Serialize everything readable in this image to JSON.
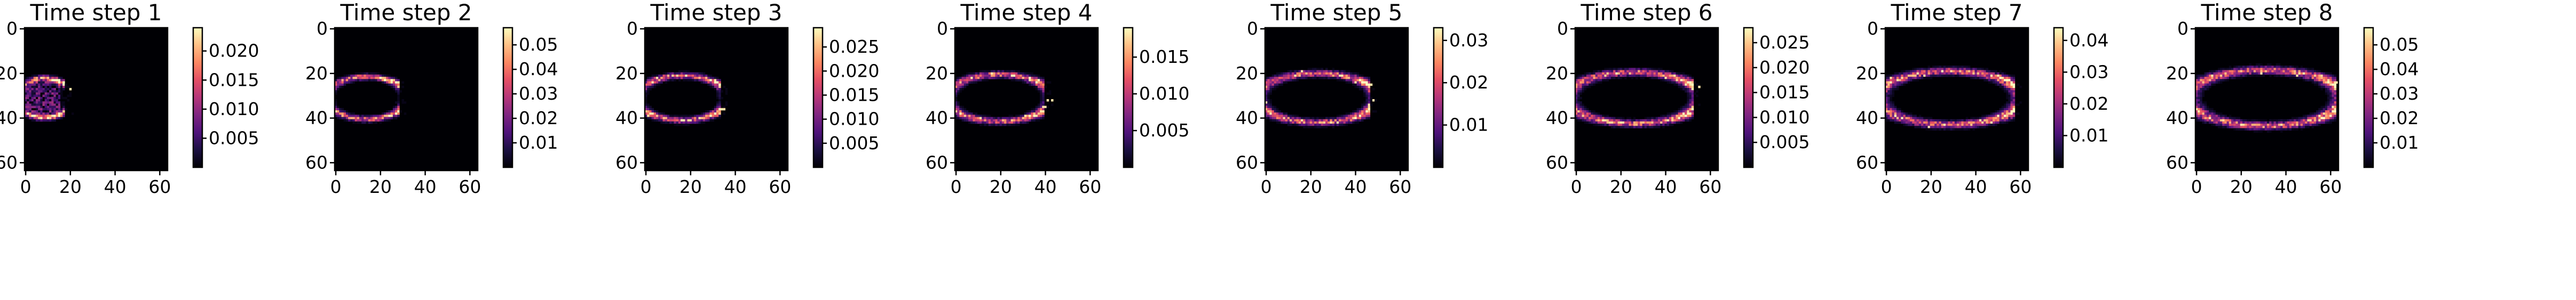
{
  "figure": {
    "background": "#ffffff",
    "colormap": "magma"
  },
  "chart_data": [
    {
      "type": "heatmap",
      "title": "Time step 1",
      "grid_size": 64,
      "xticks": [
        "0",
        "20",
        "40",
        "60"
      ],
      "yticks": [
        "0",
        "20",
        "40",
        "60"
      ],
      "xlim": [
        0,
        63
      ],
      "ylim": [
        63,
        0
      ],
      "colorbar": {
        "min": 0.0,
        "max": 0.024,
        "ticks": [
          0.005,
          0.01,
          0.015,
          0.02
        ],
        "tick_labels": [
          "0.005",
          "0.010",
          "0.015",
          "0.020"
        ]
      },
      "front_x": 15
    },
    {
      "type": "heatmap",
      "title": "Time step 2",
      "grid_size": 64,
      "xticks": [
        "0",
        "20",
        "40",
        "60"
      ],
      "yticks": [
        "0",
        "20",
        "40",
        "60"
      ],
      "xlim": [
        0,
        63
      ],
      "ylim": [
        63,
        0
      ],
      "colorbar": {
        "min": 0.0,
        "max": 0.057,
        "ticks": [
          0.01,
          0.02,
          0.03,
          0.04,
          0.05
        ],
        "tick_labels": [
          "0.01",
          "0.02",
          "0.03",
          "0.04",
          "0.05"
        ]
      },
      "front_x": 26
    },
    {
      "type": "heatmap",
      "title": "Time step 3",
      "grid_size": 64,
      "xticks": [
        "0",
        "20",
        "40",
        "60"
      ],
      "yticks": [
        "0",
        "20",
        "40",
        "60"
      ],
      "xlim": [
        0,
        63
      ],
      "ylim": [
        63,
        0
      ],
      "colorbar": {
        "min": 0.0,
        "max": 0.029,
        "ticks": [
          0.005,
          0.01,
          0.015,
          0.02,
          0.025
        ],
        "tick_labels": [
          "0.005",
          "0.010",
          "0.015",
          "0.020",
          "0.025"
        ]
      },
      "front_x": 31
    },
    {
      "type": "heatmap",
      "title": "Time step 4",
      "grid_size": 64,
      "xticks": [
        "0",
        "20",
        "40",
        "60"
      ],
      "yticks": [
        "0",
        "20",
        "40",
        "60"
      ],
      "xlim": [
        0,
        63
      ],
      "ylim": [
        63,
        0
      ],
      "colorbar": {
        "min": 0.0,
        "max": 0.019,
        "ticks": [
          0.005,
          0.01,
          0.015
        ],
        "tick_labels": [
          "0.005",
          "0.010",
          "0.015"
        ]
      },
      "front_x": 37
    },
    {
      "type": "heatmap",
      "title": "Time step 5",
      "grid_size": 64,
      "xticks": [
        "0",
        "20",
        "40",
        "60"
      ],
      "yticks": [
        "0",
        "20",
        "40",
        "60"
      ],
      "xlim": [
        0,
        63
      ],
      "ylim": [
        63,
        0
      ],
      "colorbar": {
        "min": 0.0,
        "max": 0.033,
        "ticks": [
          0.01,
          0.02,
          0.03
        ],
        "tick_labels": [
          "0.01",
          "0.02",
          "0.03"
        ]
      },
      "front_x": 44
    },
    {
      "type": "heatmap",
      "title": "Time step 6",
      "grid_size": 64,
      "xticks": [
        "0",
        "20",
        "40",
        "60"
      ],
      "yticks": [
        "0",
        "20",
        "40",
        "60"
      ],
      "xlim": [
        0,
        63
      ],
      "ylim": [
        63,
        0
      ],
      "colorbar": {
        "min": 0.0,
        "max": 0.028,
        "ticks": [
          0.005,
          0.01,
          0.015,
          0.02,
          0.025
        ],
        "tick_labels": [
          "0.005",
          "0.010",
          "0.015",
          "0.020",
          "0.025"
        ]
      },
      "front_x": 50
    },
    {
      "type": "heatmap",
      "title": "Time step 7",
      "grid_size": 64,
      "xticks": [
        "0",
        "20",
        "40",
        "60"
      ],
      "yticks": [
        "0",
        "20",
        "40",
        "60"
      ],
      "xlim": [
        0,
        63
      ],
      "ylim": [
        63,
        0
      ],
      "colorbar": {
        "min": 0.0,
        "max": 0.044,
        "ticks": [
          0.01,
          0.02,
          0.03,
          0.04
        ],
        "tick_labels": [
          "0.01",
          "0.02",
          "0.03",
          "0.04"
        ]
      },
      "front_x": 55
    },
    {
      "type": "heatmap",
      "title": "Time step 8",
      "grid_size": 64,
      "xticks": [
        "0",
        "20",
        "40",
        "60"
      ],
      "yticks": [
        "0",
        "20",
        "40",
        "60"
      ],
      "xlim": [
        0,
        63
      ],
      "ylim": [
        63,
        0
      ],
      "colorbar": {
        "min": 0.0,
        "max": 0.057,
        "ticks": [
          0.01,
          0.02,
          0.03,
          0.04,
          0.05
        ],
        "tick_labels": [
          "0.01",
          "0.02",
          "0.03",
          "0.04",
          "0.05"
        ]
      },
      "front_x": 60
    }
  ]
}
